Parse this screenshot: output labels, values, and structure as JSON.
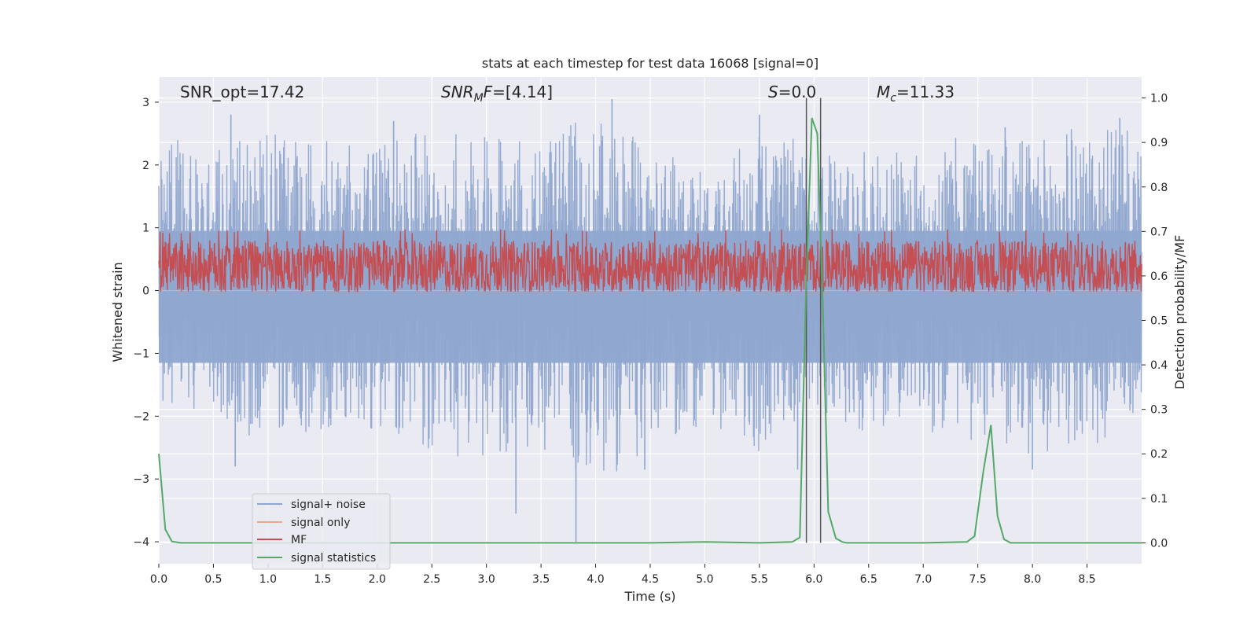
{
  "chart_data": {
    "type": "line",
    "title": "stats at each timestep for test data 16068 [signal=0]",
    "xlabel": "Time (s)",
    "ylabel_left": "Whitened strain",
    "ylabel_right": "Detection probability/MF",
    "xlim": [
      0.0,
      9.0
    ],
    "ylim_left": [
      -4.35,
      3.4
    ],
    "ylim_right": [
      -0.047,
      1.047
    ],
    "x_ticks": [
      "0.0",
      "0.5",
      "1.0",
      "1.5",
      "2.0",
      "2.5",
      "3.0",
      "3.5",
      "4.0",
      "4.5",
      "5.0",
      "5.5",
      "6.0",
      "6.5",
      "7.0",
      "7.5",
      "8.0",
      "8.5"
    ],
    "y_left_ticks": [
      "3",
      "2",
      "1",
      "0",
      "−1",
      "−2",
      "−3",
      "−4"
    ],
    "y_right_ticks": [
      "1.0",
      "0.9",
      "0.8",
      "0.7",
      "0.6",
      "0.5",
      "0.4",
      "0.3",
      "0.2",
      "0.1",
      "0.0"
    ],
    "grid": true,
    "annotations": {
      "snr_opt": "SNR_opt=17.42",
      "snr_mf_main": "SNR",
      "snr_mf_sub": "M",
      "snr_mf_tail": "F",
      "snr_mf_value": "=[4.14]",
      "s_main": "S",
      "s_value": "=0.0",
      "mc_main": "M",
      "mc_sub": "c",
      "mc_value": "=11.33"
    },
    "vertical_lines": [
      5.93,
      6.06
    ],
    "series": [
      {
        "name": "signal+ noise",
        "color": "#8fa6cf",
        "axis": "left",
        "envelope": {
          "x": [
            0.0,
            0.5,
            1.0,
            1.5,
            2.0,
            2.5,
            3.0,
            3.5,
            4.0,
            4.5,
            5.0,
            5.5,
            6.0,
            6.5,
            7.0,
            7.5,
            8.0,
            8.5,
            9.0
          ],
          "upper": [
            2.3,
            2.6,
            2.5,
            2.4,
            2.5,
            2.6,
            2.5,
            2.4,
            2.9,
            2.3,
            1.9,
            2.5,
            2.4,
            2.2,
            2.2,
            2.6,
            2.4,
            2.7,
            2.5
          ],
          "lower": [
            -1.8,
            -2.1,
            -2.5,
            -2.2,
            -2.3,
            -2.6,
            -2.7,
            -2.5,
            -3.1,
            -2.6,
            -2.1,
            -2.6,
            -1.9,
            -2.3,
            -2.2,
            -2.6,
            -2.6,
            -2.6,
            -1.9
          ]
        },
        "spikes": [
          [
            0.66,
            2.8
          ],
          [
            2.15,
            2.7
          ],
          [
            4.15,
            3.05
          ],
          [
            5.5,
            2.8
          ],
          [
            7.75,
            2.6
          ],
          [
            8.8,
            2.75
          ],
          [
            0.7,
            -2.8
          ],
          [
            3.27,
            -3.55
          ],
          [
            3.82,
            -4.0
          ],
          [
            4.45,
            -2.85
          ],
          [
            5.85,
            -2.85
          ],
          [
            8.0,
            -2.85
          ]
        ]
      },
      {
        "name": "signal only",
        "color": "#e8a98b",
        "axis": "left",
        "y": [
          0.0,
          0.0
        ]
      },
      {
        "name": "MF",
        "color": "#c44e52",
        "axis": "right",
        "center": 0.62,
        "spread": 0.06,
        "max": 0.705,
        "min": 0.565
      },
      {
        "name": "signal statistics",
        "color": "#55a868",
        "axis": "right",
        "x": [
          0.0,
          0.06,
          0.12,
          0.2,
          0.4,
          1.0,
          2.0,
          3.0,
          4.0,
          4.5,
          5.0,
          5.5,
          5.8,
          5.87,
          5.93,
          5.98,
          6.03,
          6.08,
          6.13,
          6.2,
          6.26,
          6.3,
          6.4,
          7.0,
          7.4,
          7.47,
          7.55,
          7.62,
          7.68,
          7.74,
          7.8,
          8.0,
          9.0
        ],
        "y": [
          0.2,
          0.03,
          0.003,
          0.0,
          0.0,
          0.0,
          0.0,
          0.0,
          0.0,
          0.0,
          0.002,
          0.0,
          0.002,
          0.012,
          0.6,
          0.955,
          0.92,
          0.54,
          0.07,
          0.01,
          0.002,
          0.0,
          0.0,
          0.0,
          0.002,
          0.015,
          0.16,
          0.265,
          0.06,
          0.008,
          0.0,
          0.0,
          0.0
        ]
      }
    ],
    "legend_position": "lower-left"
  }
}
